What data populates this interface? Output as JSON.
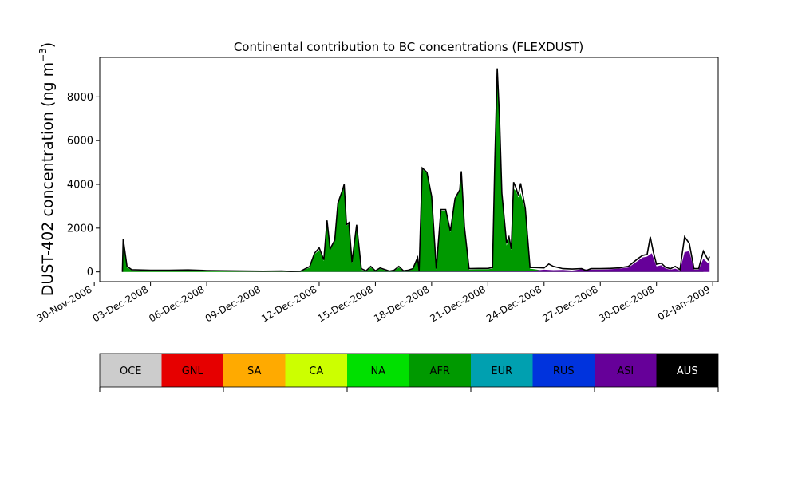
{
  "chart_data": {
    "type": "area",
    "stacked": true,
    "title": "Continental contribution to BC concentrations (FLEXDUST)",
    "ylabel": "DUST-402 concentration (ng m",
    "ylabel_sup": "−3",
    "ylabel_close": ")",
    "xlabel": "",
    "x_ticks": [
      "30-Nov-2008",
      "03-Dec-2008",
      "06-Dec-2008",
      "09-Dec-2008",
      "12-Dec-2008",
      "15-Dec-2008",
      "18-Dec-2008",
      "21-Dec-2008",
      "24-Dec-2008",
      "27-Dec-2008",
      "30-Dec-2008",
      "02-Jan-2009"
    ],
    "y_ticks": [
      "0",
      "2000",
      "4000",
      "6000",
      "8000"
    ],
    "x_range": [
      "2008-11-30T07:00",
      "2009-01-02T07:00"
    ],
    "ylim": [
      -450,
      9800
    ],
    "legend": {
      "placement": "bottom",
      "entries": [
        {
          "name": "OCE",
          "color": "#cccccc"
        },
        {
          "name": "GNL",
          "color": "#e60000"
        },
        {
          "name": "SA",
          "color": "#ffaa00"
        },
        {
          "name": "CA",
          "color": "#ccff00"
        },
        {
          "name": "NA",
          "color": "#00e000"
        },
        {
          "name": "AFR",
          "color": "#009900"
        },
        {
          "name": "EUR",
          "color": "#00a0b0"
        },
        {
          "name": "RUS",
          "color": "#0033dd"
        },
        {
          "name": "ASI",
          "color": "#660099"
        },
        {
          "name": "AUS",
          "color": "#000000"
        }
      ]
    },
    "series": [
      {
        "name": "AFR",
        "color": "#009900",
        "points": [
          [
            "2008-12-01T12:00",
            0
          ],
          [
            "2008-12-01T13:00",
            1450
          ],
          [
            "2008-12-01T18:00",
            200
          ],
          [
            "2008-12-02T00:00",
            70
          ],
          [
            "2008-12-03T00:00",
            50
          ],
          [
            "2008-12-04T00:00",
            50
          ],
          [
            "2008-12-05T00:00",
            60
          ],
          [
            "2008-12-06T00:00",
            40
          ],
          [
            "2008-12-07T00:00",
            30
          ],
          [
            "2008-12-08T00:00",
            20
          ],
          [
            "2008-12-09T00:00",
            15
          ],
          [
            "2008-12-10T00:00",
            20
          ],
          [
            "2008-12-10T12:00",
            10
          ],
          [
            "2008-12-11T00:00",
            20
          ],
          [
            "2008-12-11T12:00",
            200
          ],
          [
            "2008-12-11T18:00",
            800
          ],
          [
            "2008-12-12T00:00",
            1000
          ],
          [
            "2008-12-12T06:00",
            500
          ],
          [
            "2008-12-12T10:00",
            2300
          ],
          [
            "2008-12-12T14:00",
            1000
          ],
          [
            "2008-12-12T20:00",
            1400
          ],
          [
            "2008-12-13T00:00",
            3100
          ],
          [
            "2008-12-13T06:00",
            3700
          ],
          [
            "2008-12-13T08:00",
            3950
          ],
          [
            "2008-12-13T11:00",
            2100
          ],
          [
            "2008-12-13T14:00",
            2200
          ],
          [
            "2008-12-13T18:00",
            400
          ],
          [
            "2008-12-14T00:00",
            2100
          ],
          [
            "2008-12-14T06:00",
            100
          ],
          [
            "2008-12-14T12:00",
            20
          ],
          [
            "2008-12-14T18:00",
            200
          ],
          [
            "2008-12-15T00:00",
            30
          ],
          [
            "2008-12-15T06:00",
            140
          ],
          [
            "2008-12-15T18:00",
            20
          ],
          [
            "2008-12-16T00:00",
            50
          ],
          [
            "2008-12-16T06:00",
            200
          ],
          [
            "2008-12-16T12:00",
            30
          ],
          [
            "2008-12-16T18:00",
            50
          ],
          [
            "2008-12-17T00:00",
            120
          ],
          [
            "2008-12-17T06:00",
            600
          ],
          [
            "2008-12-17T08:00",
            30
          ],
          [
            "2008-12-17T12:00",
            4700
          ],
          [
            "2008-12-17T18:00",
            4500
          ],
          [
            "2008-12-18T00:00",
            3400
          ],
          [
            "2008-12-18T06:00",
            100
          ],
          [
            "2008-12-18T12:00",
            2800
          ],
          [
            "2008-12-18T18:00",
            2800
          ],
          [
            "2008-12-19T00:00",
            1800
          ],
          [
            "2008-12-19T06:00",
            3300
          ],
          [
            "2008-12-19T12:00",
            3700
          ],
          [
            "2008-12-19T14:00",
            4550
          ],
          [
            "2008-12-19T18:00",
            2000
          ],
          [
            "2008-12-20T00:00",
            100
          ],
          [
            "2008-12-20T12:00",
            120
          ],
          [
            "2008-12-21T00:00",
            120
          ],
          [
            "2008-12-21T06:00",
            150
          ],
          [
            "2008-12-21T09:00",
            5000
          ],
          [
            "2008-12-21T12:00",
            8800
          ],
          [
            "2008-12-21T15:00",
            6800
          ],
          [
            "2008-12-21T18:00",
            3500
          ],
          [
            "2008-12-22T00:00",
            1200
          ],
          [
            "2008-12-22T03:00",
            1500
          ],
          [
            "2008-12-22T06:00",
            1000
          ],
          [
            "2008-12-22T09:00",
            3800
          ],
          [
            "2008-12-22T12:00",
            3700
          ],
          [
            "2008-12-22T15:00",
            3400
          ],
          [
            "2008-12-22T18:00",
            3600
          ],
          [
            "2008-12-23T00:00",
            2800
          ],
          [
            "2008-12-23T06:00",
            150
          ],
          [
            "2008-12-23T12:00",
            120
          ],
          [
            "2008-12-24T00:00",
            50
          ],
          [
            "2008-12-25T00:00",
            30
          ],
          [
            "2008-12-26T00:00",
            30
          ],
          [
            "2008-12-27T00:00",
            30
          ],
          [
            "2008-12-28T00:00",
            30
          ],
          [
            "2008-12-29T00:00",
            20
          ],
          [
            "2008-12-30T00:00",
            20
          ],
          [
            "2008-12-31T00:00",
            20
          ],
          [
            "2009-01-01T00:00",
            20
          ],
          [
            "2009-01-01T12:00",
            20
          ]
        ]
      },
      {
        "name": "ASI",
        "color": "#660099",
        "points": [
          [
            "2008-12-01T12:00",
            0
          ],
          [
            "2008-12-10T00:00",
            0
          ],
          [
            "2008-12-23T00:00",
            20
          ],
          [
            "2008-12-23T12:00",
            60
          ],
          [
            "2008-12-24T00:00",
            100
          ],
          [
            "2008-12-24T12:00",
            80
          ],
          [
            "2008-12-25T00:00",
            90
          ],
          [
            "2008-12-25T12:00",
            60
          ],
          [
            "2008-12-26T00:00",
            120
          ],
          [
            "2008-12-26T12:00",
            100
          ],
          [
            "2008-12-27T00:00",
            100
          ],
          [
            "2008-12-27T12:00",
            120
          ],
          [
            "2008-12-28T00:00",
            150
          ],
          [
            "2008-12-28T12:00",
            200
          ],
          [
            "2008-12-29T00:00",
            500
          ],
          [
            "2008-12-29T06:00",
            650
          ],
          [
            "2008-12-29T12:00",
            700
          ],
          [
            "2008-12-29T18:00",
            850
          ],
          [
            "2008-12-30T00:00",
            250
          ],
          [
            "2008-12-30T06:00",
            300
          ],
          [
            "2008-12-30T12:00",
            150
          ],
          [
            "2008-12-30T18:00",
            100
          ],
          [
            "2008-12-31T00:00",
            150
          ],
          [
            "2008-12-31T06:00",
            60
          ],
          [
            "2008-12-31T12:00",
            900
          ],
          [
            "2008-12-31T18:00",
            950
          ],
          [
            "2009-01-01T00:00",
            100
          ],
          [
            "2009-01-01T06:00",
            100
          ],
          [
            "2009-01-01T12:00",
            600
          ],
          [
            "2009-01-01T18:00",
            400
          ],
          [
            "2009-01-01T20:00",
            500
          ]
        ]
      },
      {
        "name": "AUS",
        "color": "#000000",
        "points": [
          [
            "2008-12-01T12:00",
            0
          ],
          [
            "2009-01-01T20:00",
            0
          ]
        ]
      }
    ],
    "total_line": [
      [
        "2008-12-01T12:00",
        0
      ],
      [
        "2008-12-01T13:00",
        1500
      ],
      [
        "2008-12-01T18:00",
        250
      ],
      [
        "2008-12-02T00:00",
        100
      ],
      [
        "2008-12-03T00:00",
        80
      ],
      [
        "2008-12-04T00:00",
        80
      ],
      [
        "2008-12-05T00:00",
        90
      ],
      [
        "2008-12-06T00:00",
        60
      ],
      [
        "2008-12-07T00:00",
        50
      ],
      [
        "2008-12-08T00:00",
        40
      ],
      [
        "2008-12-09T00:00",
        30
      ],
      [
        "2008-12-10T00:00",
        40
      ],
      [
        "2008-12-10T12:00",
        20
      ],
      [
        "2008-12-11T00:00",
        30
      ],
      [
        "2008-12-11T12:00",
        250
      ],
      [
        "2008-12-11T18:00",
        850
      ],
      [
        "2008-12-12T00:00",
        1100
      ],
      [
        "2008-12-12T06:00",
        550
      ],
      [
        "2008-12-12T10:00",
        2350
      ],
      [
        "2008-12-12T14:00",
        1050
      ],
      [
        "2008-12-12T20:00",
        1450
      ],
      [
        "2008-12-13T00:00",
        3150
      ],
      [
        "2008-12-13T06:00",
        3750
      ],
      [
        "2008-12-13T08:00",
        4000
      ],
      [
        "2008-12-13T11:00",
        2150
      ],
      [
        "2008-12-13T14:00",
        2250
      ],
      [
        "2008-12-13T18:00",
        450
      ],
      [
        "2008-12-14T00:00",
        2150
      ],
      [
        "2008-12-14T06:00",
        150
      ],
      [
        "2008-12-14T12:00",
        50
      ],
      [
        "2008-12-14T18:00",
        250
      ],
      [
        "2008-12-15T00:00",
        50
      ],
      [
        "2008-12-15T06:00",
        180
      ],
      [
        "2008-12-15T18:00",
        40
      ],
      [
        "2008-12-16T00:00",
        80
      ],
      [
        "2008-12-16T06:00",
        250
      ],
      [
        "2008-12-16T12:00",
        50
      ],
      [
        "2008-12-16T18:00",
        80
      ],
      [
        "2008-12-17T00:00",
        150
      ],
      [
        "2008-12-17T06:00",
        650
      ],
      [
        "2008-12-17T08:00",
        50
      ],
      [
        "2008-12-17T12:00",
        4750
      ],
      [
        "2008-12-17T18:00",
        4550
      ],
      [
        "2008-12-18T00:00",
        3450
      ],
      [
        "2008-12-18T06:00",
        150
      ],
      [
        "2008-12-18T12:00",
        2850
      ],
      [
        "2008-12-18T18:00",
        2850
      ],
      [
        "2008-12-19T00:00",
        1850
      ],
      [
        "2008-12-19T06:00",
        3350
      ],
      [
        "2008-12-19T12:00",
        3750
      ],
      [
        "2008-12-19T14:00",
        4600
      ],
      [
        "2008-12-19T18:00",
        2050
      ],
      [
        "2008-12-20T00:00",
        150
      ],
      [
        "2008-12-20T12:00",
        160
      ],
      [
        "2008-12-21T00:00",
        160
      ],
      [
        "2008-12-21T06:00",
        200
      ],
      [
        "2008-12-21T09:00",
        5100
      ],
      [
        "2008-12-21T12:00",
        9300
      ],
      [
        "2008-12-21T15:00",
        7000
      ],
      [
        "2008-12-21T18:00",
        3600
      ],
      [
        "2008-12-22T00:00",
        1300
      ],
      [
        "2008-12-22T03:00",
        1600
      ],
      [
        "2008-12-22T06:00",
        1050
      ],
      [
        "2008-12-22T09:00",
        4100
      ],
      [
        "2008-12-22T12:00",
        3850
      ],
      [
        "2008-12-22T15:00",
        3500
      ],
      [
        "2008-12-22T18:00",
        4050
      ],
      [
        "2008-12-23T00:00",
        2900
      ],
      [
        "2008-12-23T06:00",
        200
      ],
      [
        "2008-12-23T12:00",
        200
      ],
      [
        "2008-12-24T00:00",
        180
      ],
      [
        "2008-12-24T06:00",
        360
      ],
      [
        "2008-12-24T12:00",
        250
      ],
      [
        "2008-12-25T00:00",
        150
      ],
      [
        "2008-12-25T12:00",
        130
      ],
      [
        "2008-12-26T00:00",
        150
      ],
      [
        "2008-12-26T06:00",
        60
      ],
      [
        "2008-12-26T12:00",
        150
      ],
      [
        "2008-12-27T00:00",
        150
      ],
      [
        "2008-12-27T12:00",
        160
      ],
      [
        "2008-12-28T00:00",
        180
      ],
      [
        "2008-12-28T12:00",
        250
      ],
      [
        "2008-12-29T00:00",
        600
      ],
      [
        "2008-12-29T06:00",
        750
      ],
      [
        "2008-12-29T12:00",
        800
      ],
      [
        "2008-12-29T16:00",
        1600
      ],
      [
        "2008-12-29T20:00",
        900
      ],
      [
        "2008-12-30T00:00",
        350
      ],
      [
        "2008-12-30T06:00",
        400
      ],
      [
        "2008-12-30T12:00",
        200
      ],
      [
        "2008-12-30T18:00",
        150
      ],
      [
        "2008-12-31T00:00",
        250
      ],
      [
        "2008-12-31T06:00",
        100
      ],
      [
        "2008-12-31T12:00",
        1600
      ],
      [
        "2008-12-31T18:00",
        1300
      ],
      [
        "2009-01-01T00:00",
        150
      ],
      [
        "2009-01-01T06:00",
        150
      ],
      [
        "2009-01-01T12:00",
        950
      ],
      [
        "2009-01-01T18:00",
        550
      ],
      [
        "2009-01-01T20:00",
        700
      ]
    ]
  }
}
